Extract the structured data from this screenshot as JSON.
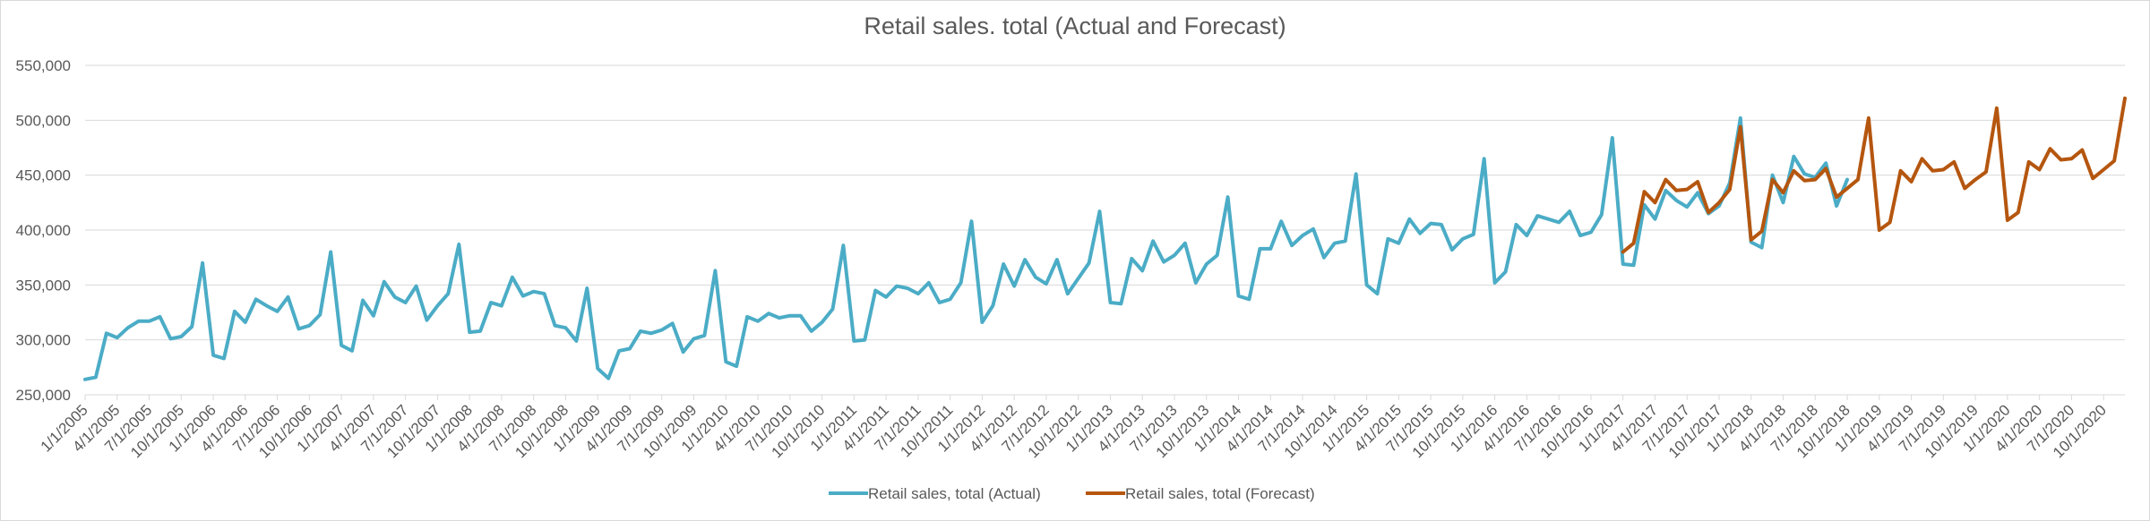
{
  "chart_data": {
    "type": "line",
    "title": "Retail sales. total (Actual and Forecast)",
    "xlabel": "",
    "ylabel": "",
    "ylim": [
      250000,
      550000
    ],
    "y_ticks": [
      "250,000",
      "300,000",
      "350,000",
      "400,000",
      "450,000",
      "500,000",
      "550,000"
    ],
    "y_tick_values": [
      250000,
      300000,
      350000,
      400000,
      450000,
      500000,
      550000
    ],
    "x_start": "2005-01",
    "x_tick_labels": [
      "1/1/2005",
      "4/1/2005",
      "7/1/2005",
      "10/1/2005",
      "1/1/2006",
      "4/1/2006",
      "7/1/2006",
      "10/1/2006",
      "1/1/2007",
      "4/1/2007",
      "7/1/2007",
      "10/1/2007",
      "1/1/2008",
      "4/1/2008",
      "7/1/2008",
      "10/1/2008",
      "1/1/2009",
      "4/1/2009",
      "7/1/2009",
      "10/1/2009",
      "1/1/2010",
      "4/1/2010",
      "7/1/2010",
      "10/1/2010",
      "1/1/2011",
      "4/1/2011",
      "7/1/2011",
      "10/1/2011",
      "1/1/2012",
      "4/1/2012",
      "7/1/2012",
      "10/1/2012",
      "1/1/2013",
      "4/1/2013",
      "7/1/2013",
      "10/1/2013",
      "1/1/2014",
      "4/1/2014",
      "7/1/2014",
      "10/1/2014",
      "1/1/2015",
      "4/1/2015",
      "7/1/2015",
      "10/1/2015",
      "1/1/2016",
      "4/1/2016",
      "7/1/2016",
      "10/1/2016",
      "1/1/2017",
      "4/1/2017",
      "7/1/2017",
      "10/1/2017",
      "1/1/2018",
      "4/1/2018",
      "7/1/2018",
      "10/1/2018",
      "1/1/2019",
      "4/1/2019",
      "7/1/2019",
      "10/1/2019",
      "1/1/2020",
      "4/1/2020",
      "7/1/2020",
      "10/1/2020"
    ],
    "grid": true,
    "legend_position": "bottom",
    "series": [
      {
        "name": "Retail sales, total (Actual)",
        "color": "#4bacc6",
        "start": "1/1/2005",
        "values": [
          264000,
          266000,
          306000,
          302000,
          311000,
          317000,
          317000,
          321000,
          301000,
          303000,
          312000,
          370000,
          286000,
          283000,
          326000,
          316000,
          337000,
          331000,
          326000,
          339000,
          310000,
          313000,
          323000,
          380000,
          295000,
          290000,
          336000,
          322000,
          353000,
          339000,
          334000,
          349000,
          318000,
          331000,
          342000,
          387000,
          307000,
          308000,
          334000,
          331000,
          357000,
          340000,
          344000,
          342000,
          313000,
          311000,
          299000,
          347000,
          274000,
          265000,
          290000,
          292000,
          308000,
          306000,
          309000,
          315000,
          289000,
          301000,
          304000,
          363000,
          280000,
          276000,
          321000,
          317000,
          324000,
          320000,
          322000,
          322000,
          308000,
          316000,
          328000,
          386000,
          299000,
          300000,
          345000,
          339000,
          349000,
          347000,
          342000,
          352000,
          334000,
          337000,
          352000,
          408000,
          316000,
          331000,
          369000,
          349000,
          373000,
          357000,
          351000,
          373000,
          342000,
          356000,
          370000,
          417000,
          334000,
          333000,
          374000,
          363000,
          390000,
          371000,
          377000,
          388000,
          352000,
          369000,
          377000,
          430000,
          340000,
          337000,
          383000,
          383000,
          408000,
          386000,
          395000,
          401000,
          375000,
          388000,
          390000,
          451000,
          350000,
          342000,
          392000,
          388000,
          410000,
          397000,
          406000,
          405000,
          382000,
          392000,
          396000,
          465000,
          352000,
          362000,
          405000,
          395000,
          413000,
          410000,
          407000,
          417000,
          395000,
          398000,
          414000,
          484000,
          369000,
          368000,
          423000,
          410000,
          436000,
          427000,
          421000,
          434000,
          415000,
          422000,
          443000,
          502000,
          389000,
          384000,
          450000,
          425000,
          467000,
          451000,
          448000,
          461000,
          422000,
          446000
        ]
      },
      {
        "name": "Retail sales, total (Forecast)",
        "color": "#b5560f",
        "start": "1/1/2017",
        "values": [
          380000,
          388000,
          435000,
          425000,
          446000,
          436000,
          437000,
          444000,
          416000,
          425000,
          437000,
          494000,
          391000,
          399000,
          446000,
          434000,
          454000,
          445000,
          446000,
          456000,
          430000,
          438000,
          446000,
          502000,
          400000,
          407000,
          454000,
          444000,
          465000,
          454000,
          455000,
          462000,
          438000,
          446000,
          453000,
          511000,
          409000,
          416000,
          462000,
          455000,
          474000,
          464000,
          465000,
          473000,
          447000,
          455000,
          463000,
          520000
        ]
      }
    ]
  }
}
